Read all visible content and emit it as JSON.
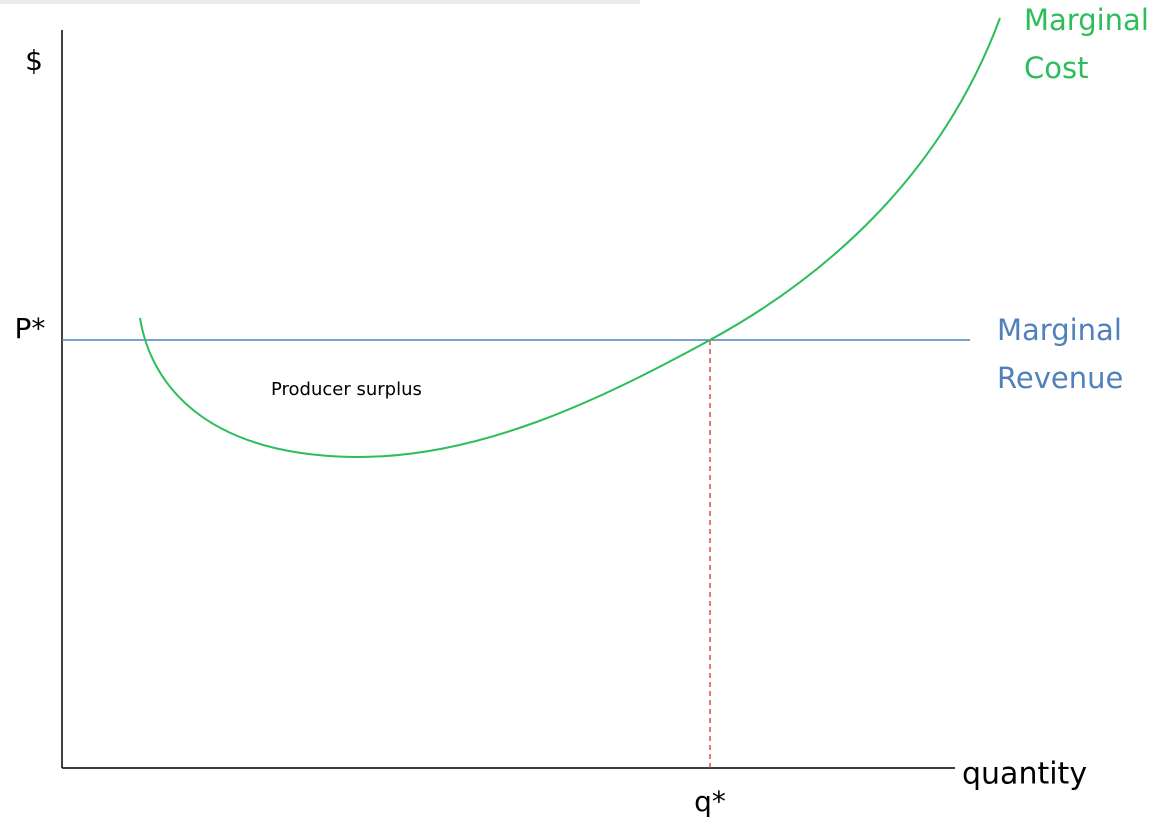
{
  "axes": {
    "y_label": "$",
    "x_label": "quantity",
    "price_label": "P*",
    "quantity_label": "q*"
  },
  "curves": {
    "marginal_cost": [
      "Marginal",
      "Cost"
    ],
    "marginal_revenue": [
      "Marginal",
      "Revenue"
    ]
  },
  "annotations": {
    "area": "Producer surplus"
  }
}
